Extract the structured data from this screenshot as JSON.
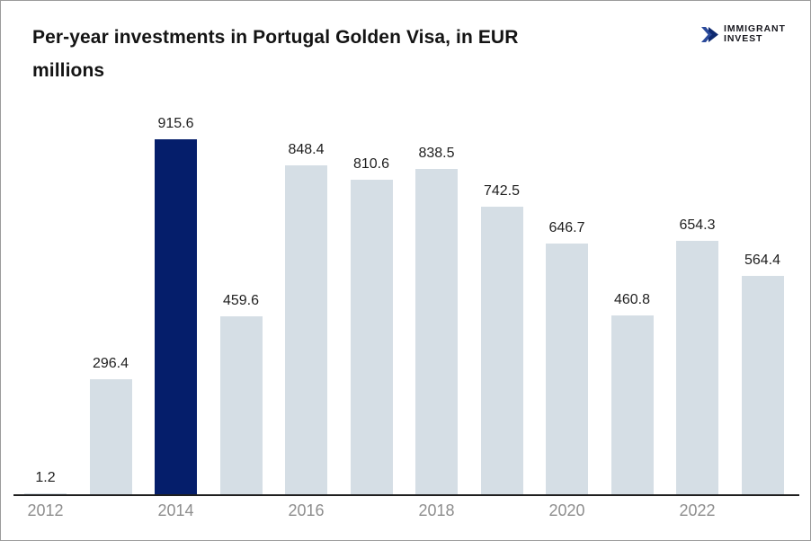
{
  "header": {
    "title_line1": "Per-year investments in Portugal Golden Visa, in EUR",
    "title_line2": "millions",
    "logo": {
      "line1": "IMMIGRANT",
      "line2": "INVEST"
    }
  },
  "colors": {
    "bar_default": "#d5dee5",
    "bar_highlight": "#051e6b",
    "axis": "#1f1f1f",
    "tick_label": "#8e8e8e",
    "value_label": "#1f1f1f",
    "logo_chevron_light": "#2b4a9b",
    "logo_chevron_dark": "#0f2a70",
    "logo_text": "#17171e",
    "title_text": "#141414"
  },
  "chart_data": {
    "type": "bar",
    "title": "Per-year investments in Portugal Golden Visa, in EUR millions",
    "categories": [
      2012,
      2013,
      2014,
      2015,
      2016,
      2017,
      2018,
      2019,
      2020,
      2021,
      2022,
      2023
    ],
    "values": [
      1.2,
      296.4,
      915.6,
      459.6,
      848.4,
      810.6,
      838.5,
      742.5,
      646.7,
      460.8,
      654.3,
      564.4
    ],
    "highlighted_category": 2014,
    "x_tick_labels": [
      "2012",
      "2014",
      "2016",
      "2018",
      "2020",
      "2022"
    ],
    "xlabel": "",
    "ylabel": "",
    "ylim": [
      0,
      1000
    ],
    "grid": false,
    "legend": "none",
    "value_labels_shown": true
  }
}
